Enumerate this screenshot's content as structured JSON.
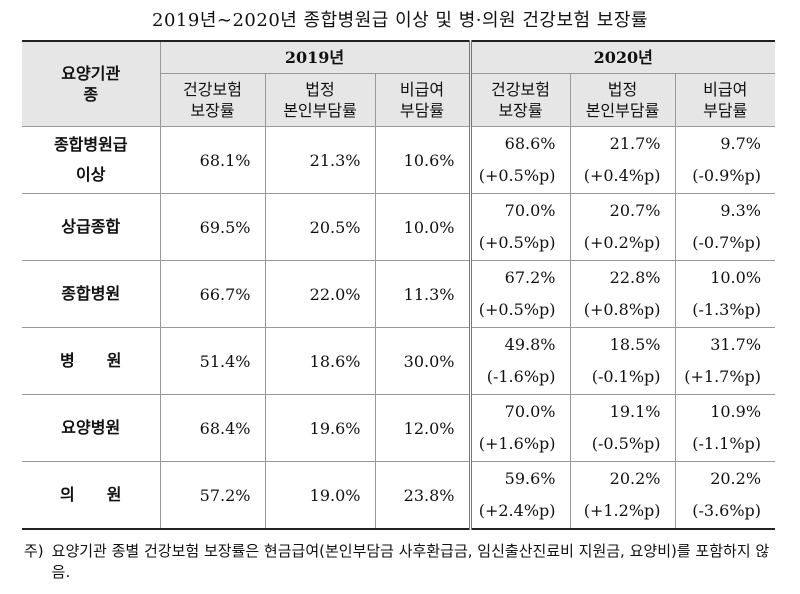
{
  "title": "2019년∼2020년 종합병원급 이상 및 병·의원 건강보험 보장률",
  "table": {
    "corner": "요양기관\n종",
    "years": [
      "2019년",
      "2020년"
    ],
    "columns": [
      "건강보험\n보장률",
      "법정\n본인부담률",
      "비급여\n부담률"
    ],
    "rows": [
      {
        "name": "종합병원급\n이상",
        "y2019": [
          "68.1%",
          "21.3%",
          "10.6%"
        ],
        "y2020": [
          [
            "68.6%",
            "(+0.5%p)"
          ],
          [
            "21.7%",
            "(+0.4%p)"
          ],
          [
            "9.7%",
            "(-0.9%p)"
          ]
        ]
      },
      {
        "name": "상급종합",
        "y2019": [
          "69.5%",
          "20.5%",
          "10.0%"
        ],
        "y2020": [
          [
            "70.0%",
            "(+0.5%p)"
          ],
          [
            "20.7%",
            "(+0.2%p)"
          ],
          [
            "9.3%",
            "(-0.7%p)"
          ]
        ]
      },
      {
        "name": "종합병원",
        "y2019": [
          "66.7%",
          "22.0%",
          "11.3%"
        ],
        "y2020": [
          [
            "67.2%",
            "(+0.5%p)"
          ],
          [
            "22.8%",
            "(+0.8%p)"
          ],
          [
            "10.0%",
            "(-1.3%p)"
          ]
        ]
      },
      {
        "name": "병　　원",
        "y2019": [
          "51.4%",
          "18.6%",
          "30.0%"
        ],
        "y2020": [
          [
            "49.8%",
            "(-1.6%p)"
          ],
          [
            "18.5%",
            "(-0.1%p)"
          ],
          [
            "31.7%",
            "(+1.7%p)"
          ]
        ]
      },
      {
        "name": "요양병원",
        "y2019": [
          "68.4%",
          "19.6%",
          "12.0%"
        ],
        "y2020": [
          [
            "70.0%",
            "(+1.6%p)"
          ],
          [
            "19.1%",
            "(-0.5%p)"
          ],
          [
            "10.9%",
            "(-1.1%p)"
          ]
        ]
      },
      {
        "name": "의　　원",
        "y2019": [
          "57.2%",
          "19.0%",
          "23.8%"
        ],
        "y2020": [
          [
            "59.6%",
            "(+2.4%p)"
          ],
          [
            "20.2%",
            "(+1.2%p)"
          ],
          [
            "20.2%",
            "(-3.6%p)"
          ]
        ]
      }
    ]
  },
  "note": {
    "lead": "주)",
    "text": "요양기관 종별 건강보험 보장률은 현금급여(본인부담금 사후환급금, 임신출산진료비 지원금, 요양비)를 포함하지 않음."
  }
}
